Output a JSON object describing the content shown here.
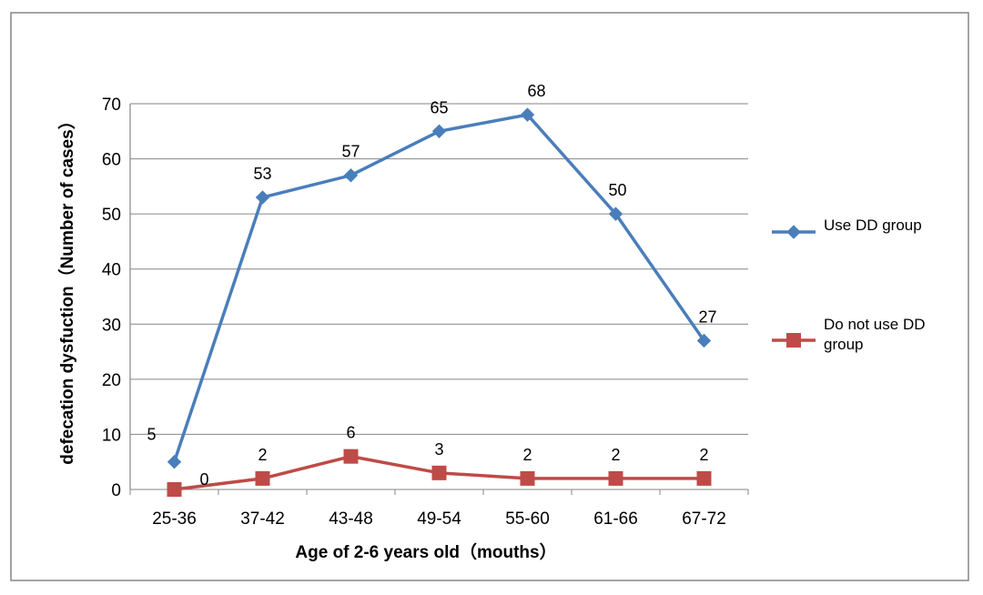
{
  "chart_data": {
    "type": "line",
    "title": "",
    "xlabel": "Age of 2-6 years old（mouths）",
    "ylabel": "defecation dysfuction（Number of cases）",
    "ylim": [
      0,
      70
    ],
    "yticks": [
      0,
      10,
      20,
      30,
      40,
      50,
      60,
      70
    ],
    "grid": "horizontal",
    "legend_position": "right",
    "categories": [
      "25-36",
      "37-42",
      "43-48",
      "49-54",
      "55-60",
      "61-66",
      "67-72"
    ],
    "series": [
      {
        "name": "Use DD  group",
        "values": [
          5,
          53,
          57,
          65,
          68,
          50,
          27
        ],
        "labels": [
          "5",
          "53",
          "57",
          "65",
          "68",
          "50",
          "27"
        ],
        "color": "#4a7ebb",
        "marker": "diamond"
      },
      {
        "name": "Do not use DD group",
        "legend_lines": [
          "Do not use DD",
          "group"
        ],
        "values": [
          0,
          2,
          6,
          3,
          2,
          2,
          2
        ],
        "labels": [
          "0",
          "2",
          "6",
          "3",
          "2",
          "2",
          "2"
        ],
        "color": "#be4b48",
        "marker": "square"
      }
    ]
  }
}
